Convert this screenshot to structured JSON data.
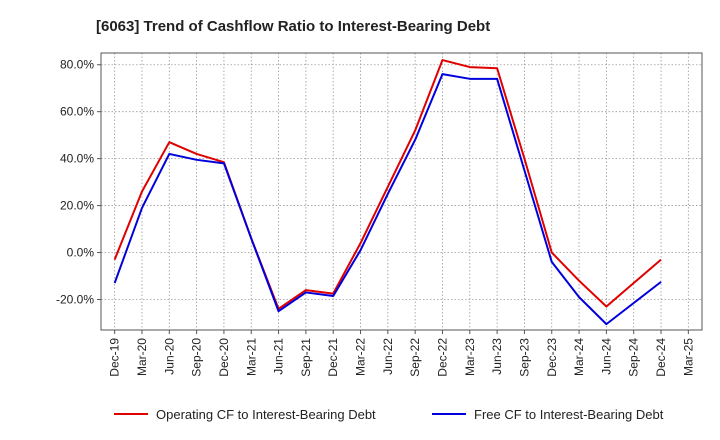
{
  "chart_data": {
    "type": "line",
    "title": "[6063]  Trend of Cashflow Ratio to Interest-Bearing Debt",
    "x": [
      "Dec-19",
      "Mar-20",
      "Jun-20",
      "Sep-20",
      "Dec-20",
      "Mar-21",
      "Jun-21",
      "Sep-21",
      "Dec-21",
      "Mar-22",
      "Jun-22",
      "Sep-22",
      "Dec-22",
      "Mar-23",
      "Jun-23",
      "Sep-23",
      "Dec-23",
      "Mar-24",
      "Jun-24",
      "Sep-24",
      "Dec-24",
      "Mar-25"
    ],
    "y_ticks": [
      "80.0%",
      "60.0%",
      "40.0%",
      "20.0%",
      "0.0%",
      "-20.0%"
    ],
    "y_tick_values": [
      80,
      60,
      40,
      20,
      0,
      -20
    ],
    "ylim": [
      -33,
      85
    ],
    "grid": true,
    "legend_position": "bottom",
    "series": [
      {
        "name": "Operating CF to Interest-Bearing Debt",
        "color": "#e00000",
        "values": [
          -3,
          26,
          47,
          42,
          38.5,
          6,
          -24,
          -16,
          -17.5,
          4,
          28,
          52,
          82,
          79,
          78.5,
          40,
          0,
          -12,
          -23,
          -13,
          -3,
          null
        ]
      },
      {
        "name": "Free CF to Interest-Bearing Debt",
        "color": "#0000dd",
        "values": [
          -13,
          19,
          42,
          39.5,
          38,
          6,
          -25,
          -17,
          -18.5,
          1,
          25,
          48,
          76,
          74,
          74,
          35,
          -4,
          -19,
          -30.5,
          -21.5,
          -12.5,
          null
        ]
      }
    ]
  }
}
